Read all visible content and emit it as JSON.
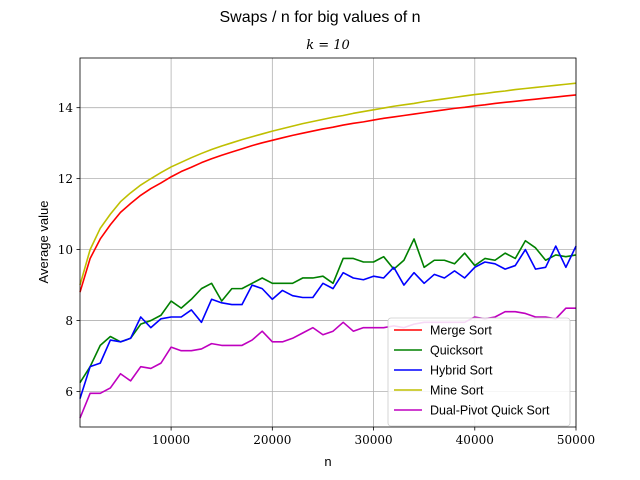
{
  "chart_data": {
    "type": "line",
    "suptitle": "Swaps / n for big values of n",
    "title": "k = 10",
    "xlabel": "n",
    "ylabel": "Average value",
    "xlim": [
      1000,
      50000
    ],
    "ylim": [
      5.0,
      15.4
    ],
    "xticks": [
      10000,
      20000,
      30000,
      40000,
      50000
    ],
    "yticks": [
      6,
      8,
      10,
      12,
      14
    ],
    "grid": true,
    "legend_position": "lower-right",
    "x": [
      1000,
      2000,
      3000,
      4000,
      5000,
      6000,
      7000,
      8000,
      9000,
      10000,
      11000,
      12000,
      13000,
      14000,
      15000,
      16000,
      17000,
      18000,
      19000,
      20000,
      21000,
      22000,
      23000,
      24000,
      25000,
      26000,
      27000,
      28000,
      29000,
      30000,
      31000,
      32000,
      33000,
      34000,
      35000,
      36000,
      37000,
      38000,
      39000,
      40000,
      41000,
      42000,
      43000,
      44000,
      45000,
      46000,
      47000,
      48000,
      49000,
      50000
    ],
    "series": [
      {
        "name": "Merge Sort",
        "color": "#ff0000",
        "values": [
          8.8,
          9.75,
          10.3,
          10.7,
          11.05,
          11.3,
          11.53,
          11.72,
          11.88,
          12.05,
          12.2,
          12.32,
          12.45,
          12.56,
          12.66,
          12.75,
          12.84,
          12.93,
          13.01,
          13.08,
          13.15,
          13.22,
          13.28,
          13.34,
          13.4,
          13.45,
          13.51,
          13.56,
          13.6,
          13.65,
          13.7,
          13.74,
          13.78,
          13.82,
          13.86,
          13.9,
          13.94,
          13.98,
          14.01,
          14.05,
          14.08,
          14.12,
          14.15,
          14.18,
          14.21,
          14.24,
          14.27,
          14.3,
          14.33,
          14.36
        ]
      },
      {
        "name": "Quicksort",
        "color": "#008000",
        "values": [
          6.25,
          6.7,
          7.3,
          7.55,
          7.4,
          7.5,
          7.9,
          8.0,
          8.15,
          8.55,
          8.35,
          8.6,
          8.9,
          9.05,
          8.55,
          8.9,
          8.9,
          9.05,
          9.2,
          9.05,
          9.05,
          9.05,
          9.2,
          9.2,
          9.25,
          9.05,
          9.75,
          9.75,
          9.65,
          9.65,
          9.8,
          9.45,
          9.7,
          10.3,
          9.5,
          9.7,
          9.7,
          9.6,
          9.9,
          9.55,
          9.75,
          9.7,
          9.9,
          9.75,
          10.25,
          10.05,
          9.7,
          9.85,
          9.8,
          9.85
        ]
      },
      {
        "name": "Hybrid Sort",
        "color": "#0000ff",
        "values": [
          5.8,
          6.7,
          6.8,
          7.45,
          7.4,
          7.5,
          8.1,
          7.8,
          8.05,
          8.1,
          8.1,
          8.3,
          7.95,
          8.6,
          8.5,
          8.45,
          8.45,
          9.0,
          8.9,
          8.6,
          8.85,
          8.7,
          8.65,
          8.65,
          9.05,
          8.9,
          9.35,
          9.2,
          9.15,
          9.25,
          9.2,
          9.5,
          9.0,
          9.35,
          9.05,
          9.3,
          9.2,
          9.4,
          9.2,
          9.5,
          9.65,
          9.6,
          9.45,
          9.55,
          10.0,
          9.45,
          9.5,
          10.1,
          9.5,
          10.1
        ]
      },
      {
        "name": "Mine Sort",
        "color": "#bfbf00",
        "values": [
          9.0,
          10.0,
          10.6,
          11.0,
          11.35,
          11.6,
          11.82,
          12.0,
          12.17,
          12.33,
          12.46,
          12.59,
          12.71,
          12.82,
          12.92,
          13.01,
          13.1,
          13.18,
          13.26,
          13.34,
          13.41,
          13.48,
          13.55,
          13.61,
          13.67,
          13.73,
          13.78,
          13.84,
          13.89,
          13.94,
          13.99,
          14.04,
          14.08,
          14.12,
          14.17,
          14.21,
          14.25,
          14.29,
          14.33,
          14.37,
          14.4,
          14.44,
          14.47,
          14.51,
          14.54,
          14.57,
          14.6,
          14.63,
          14.66,
          14.69
        ]
      },
      {
        "name": "Dual-Pivot Quick Sort",
        "color": "#bf00bf",
        "values": [
          5.25,
          5.95,
          5.95,
          6.1,
          6.5,
          6.3,
          6.7,
          6.65,
          6.8,
          7.25,
          7.15,
          7.15,
          7.2,
          7.35,
          7.3,
          7.3,
          7.3,
          7.45,
          7.7,
          7.4,
          7.4,
          7.5,
          7.65,
          7.8,
          7.6,
          7.7,
          7.95,
          7.7,
          7.8,
          7.8,
          7.8,
          7.85,
          7.8,
          7.9,
          7.95,
          7.95,
          7.95,
          7.95,
          7.95,
          8.1,
          8.05,
          8.1,
          8.25,
          8.25,
          8.2,
          8.1,
          8.1,
          8.05,
          8.35,
          8.35
        ]
      }
    ]
  }
}
